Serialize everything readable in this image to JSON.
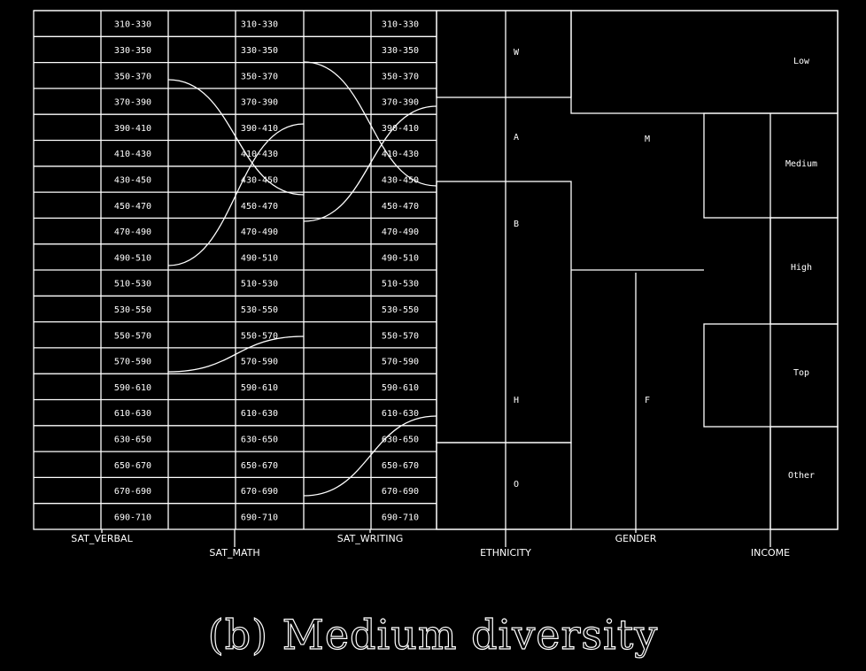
{
  "caption": "(b)  Medium diversity",
  "chart_data": {
    "type": "table",
    "dimensions": [
      "SAT_VERBAL",
      "SAT_MATH",
      "SAT_WRITING",
      "ETHNICITY",
      "GENDER",
      "INCOME"
    ],
    "sat_verbal_ranges": [
      "310-330",
      "330-350",
      "350-370",
      "370-390",
      "390-410",
      "410-430",
      "430-450",
      "450-470",
      "470-490",
      "490-510",
      "510-530",
      "530-550",
      "550-570",
      "570-590",
      "590-610",
      "610-630",
      "630-650",
      "650-670",
      "670-690",
      "690-710"
    ],
    "sat_math_ranges": [
      "310-330",
      "330-350",
      "350-370",
      "370-390",
      "390-410",
      "410-430",
      "430-450",
      "450-470",
      "470-490",
      "490-510",
      "510-530",
      "530-550",
      "550-570",
      "570-590",
      "590-610",
      "610-630",
      "630-650",
      "650-670",
      "670-690",
      "690-710"
    ],
    "sat_writing_ranges": [
      "310-330",
      "330-350",
      "350-370",
      "370-390",
      "390-410",
      "410-430",
      "430-450",
      "450-470",
      "470-490",
      "490-510",
      "510-530",
      "530-550",
      "550-570",
      "570-590",
      "590-610",
      "610-630",
      "630-650",
      "650-670",
      "670-690",
      "690-710"
    ],
    "ethnicity_labels": [
      "W",
      "A",
      "B",
      "H",
      "O"
    ],
    "gender_labels": [
      "M",
      "F"
    ],
    "income_labels": [
      "Low",
      "Medium",
      "High",
      "Top",
      "Other"
    ]
  }
}
